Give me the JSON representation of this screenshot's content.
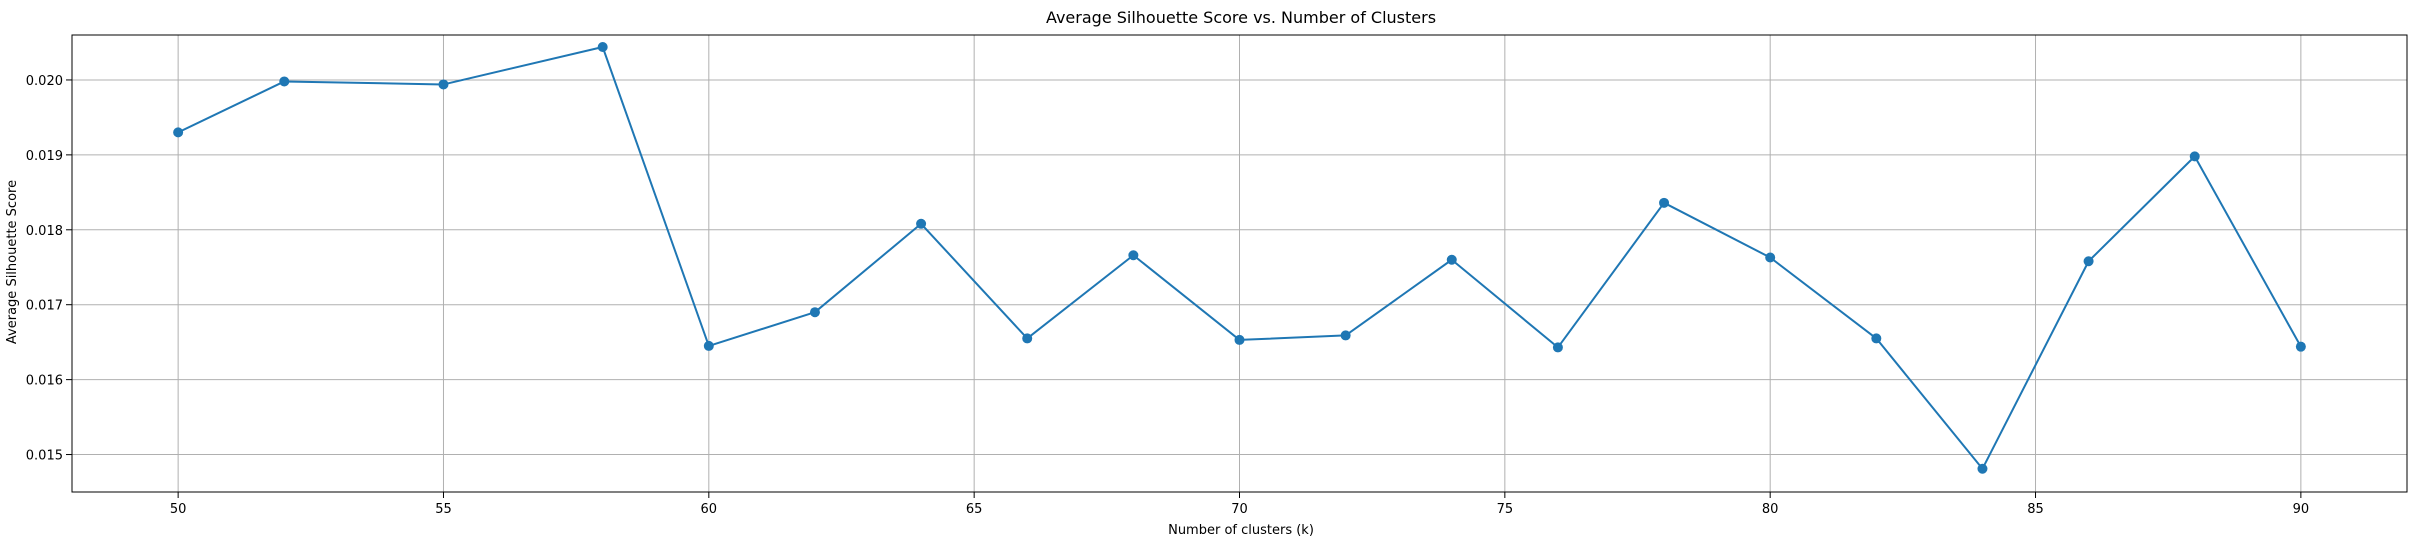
{
  "chart_data": {
    "type": "line",
    "title": "Average Silhouette Score vs. Number of Clusters",
    "xlabel": "Number of clusters (k)",
    "ylabel": "Average Silhouette Score",
    "xlim": [
      48,
      92
    ],
    "ylim": [
      0.0145,
      0.0206
    ],
    "x_ticks": [
      50,
      55,
      60,
      65,
      70,
      75,
      80,
      85,
      90
    ],
    "y_ticks": [
      0.015,
      0.016,
      0.017,
      0.018,
      0.019,
      0.02
    ],
    "y_tick_labels": [
      "0.015",
      "0.016",
      "0.017",
      "0.018",
      "0.019",
      "0.020"
    ],
    "grid": true,
    "marker": "circle",
    "color": "#1f77b4",
    "series": [
      {
        "x": [
          50,
          52,
          55,
          58,
          60,
          62,
          64,
          66,
          68,
          70,
          72,
          74,
          76,
          78,
          80,
          82,
          84,
          86,
          88,
          90
        ],
        "values": [
          0.0193,
          0.01998,
          0.01994,
          0.02044,
          0.01645,
          0.0169,
          0.01808,
          0.01655,
          0.01766,
          0.01653,
          0.01659,
          0.0176,
          0.01643,
          0.01836,
          0.01763,
          0.01655,
          0.01481,
          0.01758,
          0.01898,
          0.01644
        ]
      }
    ]
  }
}
